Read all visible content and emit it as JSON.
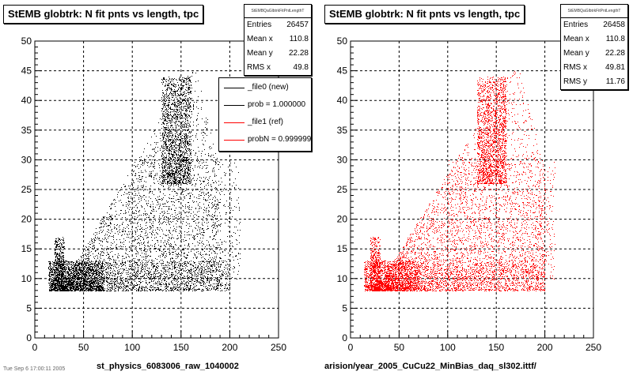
{
  "chart_data": [
    {
      "type": "scatter",
      "title": "StEMB globtrk: N fit pnts vs length, tpc",
      "xlabel": "st_physics_6083006_raw_1040002",
      "ylabel": "",
      "xlim": [
        0,
        250
      ],
      "ylim": [
        0,
        50
      ],
      "x_ticks": [
        "0",
        "50",
        "100",
        "150",
        "200",
        "250"
      ],
      "y_ticks": [
        "0",
        "5",
        "10",
        "15",
        "20",
        "25",
        "30",
        "35",
        "40",
        "45",
        "50"
      ],
      "grid": true,
      "marker_color": "#000000",
      "stats_header": "StEMBQaGlbtrkFitPntLengthT",
      "stats": [
        {
          "label": "Entries",
          "value": "26457"
        },
        {
          "label": "Mean x",
          "value": "110.8"
        },
        {
          "label": "Mean y",
          "value": "22.28"
        },
        {
          "label": "RMS x",
          "value": "49.8"
        }
      ],
      "legend": [
        {
          "label": "_file0 (new)",
          "color": "#000000"
        },
        {
          "label": "prob = 1.000000",
          "color": "#000000"
        },
        {
          "label": "_file1 (ref)",
          "color": "#ff0000"
        },
        {
          "label": "probN = 0.999999",
          "color": "#ff0000"
        }
      ],
      "legend_position": "top-right",
      "clusters": [
        {
          "x": [
            14,
            70
          ],
          "y": [
            8,
            13
          ],
          "weight": 0.22
        },
        {
          "x": [
            20,
            30
          ],
          "y": [
            8,
            17
          ],
          "weight": 0.06
        },
        {
          "x": [
            130,
            160
          ],
          "y": [
            26,
            44
          ],
          "weight": 0.2
        },
        {
          "x": [
            25,
            190
          ],
          "y": [
            8,
            45
          ],
          "weight": 0.32,
          "shape": "triangle"
        },
        {
          "x": [
            70,
            200
          ],
          "y": [
            8,
            13
          ],
          "weight": 0.1
        },
        {
          "x": [
            100,
            210
          ],
          "y": [
            10,
            30
          ],
          "weight": 0.1
        }
      ],
      "footnote": "Tue Sep 6 17:00:11 2005"
    },
    {
      "type": "scatter",
      "title": "StEMB globtrk: N fit pnts vs length, tpc",
      "xlabel": "arision/year_2005_CuCu22_MinBias_daq_sl302.ittf/",
      "ylabel": "",
      "xlim": [
        0,
        250
      ],
      "ylim": [
        0,
        50
      ],
      "x_ticks": [
        "0",
        "50",
        "100",
        "150",
        "200",
        "250"
      ],
      "y_ticks": [
        "0",
        "5",
        "10",
        "15",
        "20",
        "25",
        "30",
        "35",
        "40",
        "45",
        "50"
      ],
      "grid": true,
      "marker_color": "#ff0000",
      "stats_header": "StEMBQaGlbtrkFitPntLengthT",
      "stats": [
        {
          "label": "Entries",
          "value": "26458"
        },
        {
          "label": "Mean x",
          "value": "110.8"
        },
        {
          "label": "Mean y",
          "value": "22.28"
        },
        {
          "label": "RMS x",
          "value": "49.81"
        },
        {
          "label": "RMS y",
          "value": "11.76"
        }
      ],
      "clusters": [
        {
          "x": [
            14,
            70
          ],
          "y": [
            8,
            13
          ],
          "weight": 0.18
        },
        {
          "x": [
            20,
            30
          ],
          "y": [
            8,
            17
          ],
          "weight": 0.05
        },
        {
          "x": [
            130,
            160
          ],
          "y": [
            26,
            44
          ],
          "weight": 0.2
        },
        {
          "x": [
            25,
            200
          ],
          "y": [
            8,
            45
          ],
          "weight": 0.37,
          "shape": "triangle"
        },
        {
          "x": [
            70,
            200
          ],
          "y": [
            8,
            13
          ],
          "weight": 0.1
        },
        {
          "x": [
            100,
            210
          ],
          "y": [
            10,
            30
          ],
          "weight": 0.1
        }
      ]
    }
  ]
}
